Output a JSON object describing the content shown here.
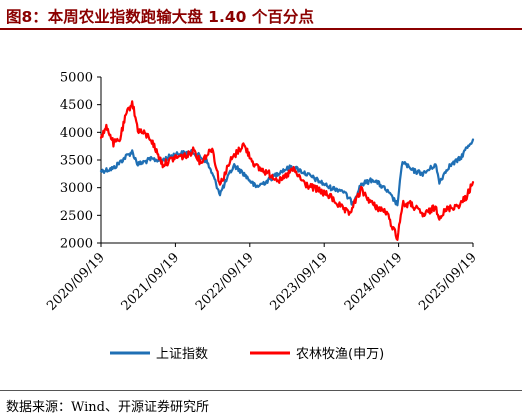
{
  "header": {
    "title": "图8：本周农业指数跑输大盘 1.40 个百分点"
  },
  "footer": {
    "source": "数据来源：Wind、开源证券研究所"
  },
  "colors": {
    "title": "#8B0000",
    "series_1": "#1f6fb4",
    "series_2": "#ff0000"
  },
  "chart_data": {
    "type": "line",
    "title": "",
    "xlabel": "",
    "ylabel": "",
    "ylim": [
      2000,
      5000
    ],
    "y_ticks": [
      "5000",
      "4500",
      "4000",
      "3500",
      "3000",
      "2500",
      "2000"
    ],
    "x_range": [
      "2020-09-19",
      "2025-09-19"
    ],
    "x_ticks": [
      "2020/09/19",
      "2021/09/19",
      "2022/09/19",
      "2023/09/19",
      "2024/09/19",
      "2025/09/19"
    ],
    "grid": false,
    "legend_position": "bottom",
    "series": [
      {
        "name": "上证指数",
        "color": "#1f6fb4",
        "points": [
          [
            "2020-09-19",
            3300
          ],
          [
            "2020-11-19",
            3350
          ],
          [
            "2021-01-19",
            3560
          ],
          [
            "2021-02-19",
            3650
          ],
          [
            "2021-03-19",
            3420
          ],
          [
            "2021-05-19",
            3510
          ],
          [
            "2021-07-19",
            3500
          ],
          [
            "2021-09-19",
            3610
          ],
          [
            "2021-12-19",
            3640
          ],
          [
            "2022-02-19",
            3480
          ],
          [
            "2022-03-19",
            3250
          ],
          [
            "2022-04-26",
            2890
          ],
          [
            "2022-06-19",
            3300
          ],
          [
            "2022-07-05",
            3400
          ],
          [
            "2022-08-19",
            3260
          ],
          [
            "2022-10-19",
            3010
          ],
          [
            "2022-12-19",
            3130
          ],
          [
            "2023-02-19",
            3300
          ],
          [
            "2023-04-19",
            3380
          ],
          [
            "2023-06-19",
            3260
          ],
          [
            "2023-08-19",
            3130
          ],
          [
            "2023-10-19",
            3000
          ],
          [
            "2023-12-19",
            2950
          ],
          [
            "2024-02-05",
            2720
          ],
          [
            "2024-03-19",
            3060
          ],
          [
            "2024-05-19",
            3150
          ],
          [
            "2024-07-19",
            2960
          ],
          [
            "2024-09-13",
            2700
          ],
          [
            "2024-10-08",
            3480
          ],
          [
            "2024-11-19",
            3320
          ],
          [
            "2025-01-19",
            3250
          ],
          [
            "2025-03-19",
            3420
          ],
          [
            "2025-04-07",
            3100
          ],
          [
            "2025-05-19",
            3370
          ],
          [
            "2025-07-19",
            3530
          ],
          [
            "2025-08-19",
            3720
          ],
          [
            "2025-09-19",
            3870
          ]
        ]
      },
      {
        "name": "农林牧渔(申万)",
        "color": "#ff0000",
        "points": [
          [
            "2020-09-19",
            3900
          ],
          [
            "2020-10-19",
            4100
          ],
          [
            "2020-11-19",
            3800
          ],
          [
            "2020-12-19",
            3850
          ],
          [
            "2021-01-19",
            4300
          ],
          [
            "2021-02-19",
            4550
          ],
          [
            "2021-03-19",
            4050
          ],
          [
            "2021-05-19",
            3900
          ],
          [
            "2021-06-19",
            3650
          ],
          [
            "2021-07-19",
            3420
          ],
          [
            "2021-08-19",
            3480
          ],
          [
            "2021-09-19",
            3550
          ],
          [
            "2021-11-19",
            3580
          ],
          [
            "2021-12-19",
            3700
          ],
          [
            "2022-01-19",
            3450
          ],
          [
            "2022-03-19",
            3720
          ],
          [
            "2022-04-26",
            3050
          ],
          [
            "2022-06-19",
            3500
          ],
          [
            "2022-08-19",
            3780
          ],
          [
            "2022-10-19",
            3380
          ],
          [
            "2022-12-19",
            3260
          ],
          [
            "2023-02-19",
            3120
          ],
          [
            "2023-04-19",
            3330
          ],
          [
            "2023-06-19",
            3060
          ],
          [
            "2023-08-19",
            2960
          ],
          [
            "2023-10-19",
            2840
          ],
          [
            "2023-12-19",
            2620
          ],
          [
            "2024-01-19",
            2520
          ],
          [
            "2024-03-19",
            2960
          ],
          [
            "2024-05-19",
            2680
          ],
          [
            "2024-07-19",
            2560
          ],
          [
            "2024-09-13",
            2100
          ],
          [
            "2024-10-08",
            2700
          ],
          [
            "2024-11-19",
            2700
          ],
          [
            "2025-01-19",
            2500
          ],
          [
            "2025-03-19",
            2650
          ],
          [
            "2025-04-07",
            2480
          ],
          [
            "2025-05-19",
            2620
          ],
          [
            "2025-07-19",
            2700
          ],
          [
            "2025-08-19",
            2850
          ],
          [
            "2025-09-19",
            3100
          ]
        ]
      }
    ]
  }
}
